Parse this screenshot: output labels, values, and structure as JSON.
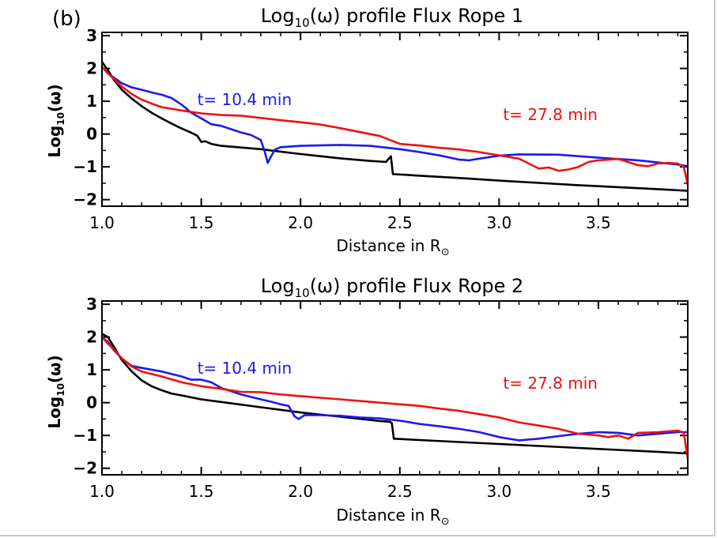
{
  "panel_label": "(b)",
  "colors": {
    "black": "#000000",
    "blue": "#1a1aee",
    "red": "#ee1111"
  },
  "chart_data": [
    {
      "type": "line",
      "title": {
        "main": "Log",
        "sub": "10",
        "rest": "(ω) profile Flux Rope 1"
      },
      "ylabel": {
        "main": "Log",
        "sub": "10",
        "rest": "(ω)"
      },
      "xlabel": {
        "main": "Distance in R",
        "sub": "⊙"
      },
      "xlim": [
        1.0,
        3.95
      ],
      "ylim": [
        -2.2,
        3.1
      ],
      "xticks": [
        1.0,
        1.5,
        2.0,
        2.5,
        3.0,
        3.5
      ],
      "xtick_labels": [
        "1.0",
        "1.5",
        "2.0",
        "2.5",
        "3.0",
        "3.5"
      ],
      "yticks": [
        3,
        2,
        1,
        0,
        -1,
        -2
      ],
      "ytick_labels": [
        "3",
        "2",
        "1",
        "0",
        "−1",
        "−2"
      ],
      "annotations": [
        {
          "text": "t= 10.4 min",
          "color": "blue",
          "x": 1.48,
          "y": 1.05
        },
        {
          "text": "t= 27.8 min",
          "color": "red",
          "x": 3.02,
          "y": 0.6
        }
      ],
      "series": [
        {
          "name": "black",
          "color": "black",
          "points": [
            [
              1.0,
              2.2
            ],
            [
              1.03,
              1.95
            ],
            [
              1.06,
              1.65
            ],
            [
              1.1,
              1.35
            ],
            [
              1.15,
              1.08
            ],
            [
              1.2,
              0.85
            ],
            [
              1.25,
              0.65
            ],
            [
              1.3,
              0.48
            ],
            [
              1.35,
              0.32
            ],
            [
              1.4,
              0.17
            ],
            [
              1.45,
              0.04
            ],
            [
              1.48,
              -0.05
            ],
            [
              1.5,
              -0.24
            ],
            [
              1.52,
              -0.22
            ],
            [
              1.55,
              -0.3
            ],
            [
              1.6,
              -0.36
            ],
            [
              1.7,
              -0.41
            ],
            [
              1.8,
              -0.46
            ],
            [
              1.85,
              -0.5
            ],
            [
              2.0,
              -0.61
            ],
            [
              2.2,
              -0.74
            ],
            [
              2.35,
              -0.82
            ],
            [
              2.43,
              -0.85
            ],
            [
              2.455,
              -0.68
            ],
            [
              2.465,
              -1.22
            ],
            [
              2.6,
              -1.27
            ],
            [
              2.8,
              -1.34
            ],
            [
              3.0,
              -1.42
            ],
            [
              3.2,
              -1.49
            ],
            [
              3.4,
              -1.56
            ],
            [
              3.6,
              -1.62
            ],
            [
              3.8,
              -1.68
            ],
            [
              3.95,
              -1.73
            ]
          ]
        },
        {
          "name": "blue",
          "color": "blue",
          "points": [
            [
              1.0,
              2.05
            ],
            [
              1.03,
              1.85
            ],
            [
              1.06,
              1.72
            ],
            [
              1.1,
              1.55
            ],
            [
              1.15,
              1.42
            ],
            [
              1.2,
              1.35
            ],
            [
              1.25,
              1.27
            ],
            [
              1.3,
              1.2
            ],
            [
              1.35,
              1.1
            ],
            [
              1.4,
              0.9
            ],
            [
              1.45,
              0.65
            ],
            [
              1.5,
              0.48
            ],
            [
              1.55,
              0.3
            ],
            [
              1.6,
              0.25
            ],
            [
              1.65,
              0.15
            ],
            [
              1.7,
              0.05
            ],
            [
              1.75,
              -0.03
            ],
            [
              1.8,
              -0.18
            ],
            [
              1.82,
              -0.55
            ],
            [
              1.835,
              -0.88
            ],
            [
              1.85,
              -0.7
            ],
            [
              1.87,
              -0.48
            ],
            [
              1.9,
              -0.4
            ],
            [
              2.0,
              -0.36
            ],
            [
              2.2,
              -0.33
            ],
            [
              2.35,
              -0.36
            ],
            [
              2.5,
              -0.46
            ],
            [
              2.6,
              -0.55
            ],
            [
              2.7,
              -0.65
            ],
            [
              2.8,
              -0.78
            ],
            [
              2.85,
              -0.8
            ],
            [
              2.9,
              -0.75
            ],
            [
              3.0,
              -0.66
            ],
            [
              3.1,
              -0.62
            ],
            [
              3.3,
              -0.63
            ],
            [
              3.5,
              -0.72
            ],
            [
              3.7,
              -0.8
            ],
            [
              3.9,
              -0.93
            ],
            [
              3.95,
              -0.98
            ]
          ]
        },
        {
          "name": "red",
          "color": "red",
          "points": [
            [
              1.0,
              2.05
            ],
            [
              1.03,
              1.85
            ],
            [
              1.06,
              1.68
            ],
            [
              1.1,
              1.45
            ],
            [
              1.15,
              1.22
            ],
            [
              1.2,
              1.05
            ],
            [
              1.25,
              0.93
            ],
            [
              1.3,
              0.82
            ],
            [
              1.4,
              0.72
            ],
            [
              1.5,
              0.63
            ],
            [
              1.6,
              0.58
            ],
            [
              1.7,
              0.56
            ],
            [
              1.8,
              0.49
            ],
            [
              1.9,
              0.42
            ],
            [
              2.0,
              0.36
            ],
            [
              2.1,
              0.29
            ],
            [
              2.2,
              0.18
            ],
            [
              2.3,
              0.06
            ],
            [
              2.4,
              -0.06
            ],
            [
              2.45,
              -0.18
            ],
            [
              2.5,
              -0.3
            ],
            [
              2.6,
              -0.35
            ],
            [
              2.7,
              -0.42
            ],
            [
              2.8,
              -0.47
            ],
            [
              2.9,
              -0.55
            ],
            [
              3.0,
              -0.65
            ],
            [
              3.1,
              -0.75
            ],
            [
              3.15,
              -0.9
            ],
            [
              3.2,
              -1.05
            ],
            [
              3.25,
              -1.02
            ],
            [
              3.3,
              -1.12
            ],
            [
              3.35,
              -1.08
            ],
            [
              3.4,
              -1.0
            ],
            [
              3.45,
              -0.85
            ],
            [
              3.5,
              -0.8
            ],
            [
              3.6,
              -0.76
            ],
            [
              3.7,
              -0.95
            ],
            [
              3.75,
              -0.98
            ],
            [
              3.8,
              -0.9
            ],
            [
              3.85,
              -0.88
            ],
            [
              3.9,
              -0.9
            ],
            [
              3.93,
              -1.0
            ],
            [
              3.95,
              -1.55
            ]
          ]
        }
      ]
    },
    {
      "type": "line",
      "title": {
        "main": "Log",
        "sub": "10",
        "rest": "(ω) profile Flux Rope 2"
      },
      "ylabel": {
        "main": "Log",
        "sub": "10",
        "rest": "(ω)"
      },
      "xlabel": {
        "main": "Distance in R",
        "sub": "⊙"
      },
      "xlim": [
        1.0,
        3.95
      ],
      "ylim": [
        -2.2,
        3.1
      ],
      "xticks": [
        1.0,
        1.5,
        2.0,
        2.5,
        3.0,
        3.5
      ],
      "xtick_labels": [
        "1.0",
        "1.5",
        "2.0",
        "2.5",
        "3.0",
        "3.5"
      ],
      "yticks": [
        3,
        2,
        1,
        0,
        -1,
        -2
      ],
      "ytick_labels": [
        "3",
        "2",
        "1",
        "0",
        "−1",
        "−2"
      ],
      "annotations": [
        {
          "text": "t= 10.4 min",
          "color": "blue",
          "x": 1.48,
          "y": 1.05
        },
        {
          "text": "t= 27.8 min",
          "color": "red",
          "x": 3.02,
          "y": 0.6
        }
      ],
      "series": [
        {
          "name": "black",
          "color": "black",
          "points": [
            [
              1.0,
              2.1
            ],
            [
              1.03,
              2.0
            ],
            [
              1.06,
              1.7
            ],
            [
              1.1,
              1.3
            ],
            [
              1.15,
              0.95
            ],
            [
              1.2,
              0.68
            ],
            [
              1.25,
              0.5
            ],
            [
              1.3,
              0.38
            ],
            [
              1.35,
              0.28
            ],
            [
              1.4,
              0.22
            ],
            [
              1.5,
              0.1
            ],
            [
              1.6,
              0.02
            ],
            [
              1.8,
              -0.14
            ],
            [
              2.0,
              -0.3
            ],
            [
              2.2,
              -0.43
            ],
            [
              2.4,
              -0.56
            ],
            [
              2.45,
              -0.58
            ],
            [
              2.46,
              -0.63
            ],
            [
              2.47,
              -1.1
            ],
            [
              2.6,
              -1.14
            ],
            [
              2.8,
              -1.2
            ],
            [
              3.0,
              -1.26
            ],
            [
              3.2,
              -1.32
            ],
            [
              3.4,
              -1.38
            ],
            [
              3.6,
              -1.44
            ],
            [
              3.8,
              -1.5
            ],
            [
              3.95,
              -1.55
            ]
          ]
        },
        {
          "name": "blue",
          "color": "blue",
          "points": [
            [
              1.0,
              2.0
            ],
            [
              1.03,
              1.85
            ],
            [
              1.06,
              1.6
            ],
            [
              1.1,
              1.35
            ],
            [
              1.15,
              1.12
            ],
            [
              1.2,
              1.06
            ],
            [
              1.3,
              0.95
            ],
            [
              1.4,
              0.8
            ],
            [
              1.45,
              0.7
            ],
            [
              1.5,
              0.7
            ],
            [
              1.55,
              0.62
            ],
            [
              1.6,
              0.45
            ],
            [
              1.7,
              0.25
            ],
            [
              1.8,
              0.1
            ],
            [
              1.85,
              0.03
            ],
            [
              1.9,
              -0.05
            ],
            [
              1.94,
              -0.1
            ],
            [
              1.97,
              -0.42
            ],
            [
              1.99,
              -0.5
            ],
            [
              2.02,
              -0.38
            ],
            [
              2.1,
              -0.38
            ],
            [
              2.2,
              -0.4
            ],
            [
              2.3,
              -0.45
            ],
            [
              2.4,
              -0.48
            ],
            [
              2.5,
              -0.55
            ],
            [
              2.6,
              -0.65
            ],
            [
              2.7,
              -0.72
            ],
            [
              2.8,
              -0.8
            ],
            [
              2.9,
              -0.9
            ],
            [
              3.0,
              -1.05
            ],
            [
              3.1,
              -1.15
            ],
            [
              3.2,
              -1.1
            ],
            [
              3.3,
              -1.02
            ],
            [
              3.4,
              -0.95
            ],
            [
              3.5,
              -0.9
            ],
            [
              3.6,
              -0.92
            ],
            [
              3.7,
              -1.0
            ],
            [
              3.8,
              -0.95
            ],
            [
              3.9,
              -0.9
            ],
            [
              3.95,
              -0.9
            ]
          ]
        },
        {
          "name": "red",
          "color": "red",
          "points": [
            [
              1.0,
              2.0
            ],
            [
              1.03,
              1.8
            ],
            [
              1.06,
              1.62
            ],
            [
              1.1,
              1.35
            ],
            [
              1.15,
              1.1
            ],
            [
              1.2,
              0.95
            ],
            [
              1.3,
              0.8
            ],
            [
              1.4,
              0.62
            ],
            [
              1.5,
              0.5
            ],
            [
              1.6,
              0.42
            ],
            [
              1.7,
              0.33
            ],
            [
              1.8,
              0.32
            ],
            [
              1.9,
              0.25
            ],
            [
              2.0,
              0.2
            ],
            [
              2.1,
              0.15
            ],
            [
              2.2,
              0.1
            ],
            [
              2.3,
              0.05
            ],
            [
              2.4,
              0.0
            ],
            [
              2.5,
              -0.05
            ],
            [
              2.6,
              -0.1
            ],
            [
              2.7,
              -0.18
            ],
            [
              2.8,
              -0.25
            ],
            [
              2.9,
              -0.35
            ],
            [
              3.0,
              -0.45
            ],
            [
              3.1,
              -0.6
            ],
            [
              3.2,
              -0.7
            ],
            [
              3.3,
              -0.8
            ],
            [
              3.4,
              -0.95
            ],
            [
              3.5,
              -1.0
            ],
            [
              3.55,
              -1.05
            ],
            [
              3.6,
              -1.0
            ],
            [
              3.65,
              -1.1
            ],
            [
              3.7,
              -0.92
            ],
            [
              3.8,
              -0.9
            ],
            [
              3.9,
              -0.85
            ],
            [
              3.93,
              -0.92
            ],
            [
              3.95,
              -1.7
            ]
          ]
        }
      ]
    }
  ]
}
